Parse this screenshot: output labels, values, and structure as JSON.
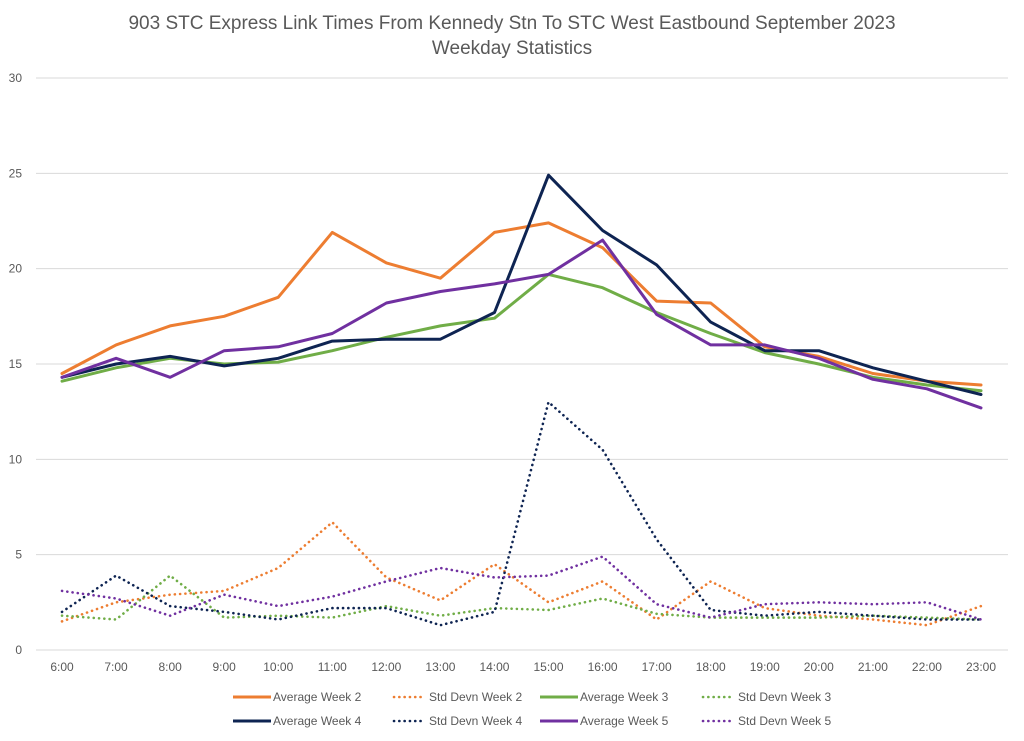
{
  "chart_data": {
    "type": "line",
    "title": "903 STC Express Link Times From Kennedy Stn To STC West Eastbound September 2023",
    "subtitle": "Weekday Statistics",
    "xlabel": "",
    "ylabel": "",
    "ylim": [
      0,
      30
    ],
    "yticks": [
      "0",
      "5",
      "10",
      "15",
      "20",
      "25",
      "30"
    ],
    "grid": true,
    "legend_position": "bottom",
    "categories": [
      "6:00",
      "7:00",
      "8:00",
      "9:00",
      "10:00",
      "11:00",
      "12:00",
      "13:00",
      "14:00",
      "15:00",
      "16:00",
      "17:00",
      "18:00",
      "19:00",
      "20:00",
      "21:00",
      "22:00",
      "23:00"
    ],
    "series": [
      {
        "name": "Average Week 2",
        "color": "#ED7D31",
        "style": "solid",
        "values": [
          14.5,
          16.0,
          17.0,
          17.5,
          18.5,
          21.9,
          20.3,
          19.5,
          21.9,
          22.4,
          21.1,
          18.3,
          18.2,
          15.9,
          15.4,
          14.5,
          14.1,
          13.9
        ]
      },
      {
        "name": "Std Devn Week 2",
        "color": "#ED7D31",
        "style": "dotted",
        "values": [
          1.5,
          2.5,
          2.9,
          3.1,
          4.3,
          6.7,
          3.8,
          2.6,
          4.5,
          2.5,
          3.6,
          1.6,
          3.6,
          2.2,
          1.8,
          1.6,
          1.3,
          2.3
        ]
      },
      {
        "name": "Average Week 3",
        "color": "#70AD47",
        "style": "solid",
        "values": [
          14.1,
          14.8,
          15.3,
          15.0,
          15.1,
          15.7,
          16.4,
          17.0,
          17.4,
          19.7,
          19.0,
          17.7,
          16.6,
          15.6,
          15.0,
          14.3,
          13.9,
          13.6
        ]
      },
      {
        "name": "Std Devn Week 3",
        "color": "#70AD47",
        "style": "dotted",
        "values": [
          1.8,
          1.6,
          3.9,
          1.7,
          1.8,
          1.7,
          2.3,
          1.8,
          2.2,
          2.1,
          2.7,
          1.9,
          1.7,
          1.7,
          1.7,
          1.8,
          1.7,
          1.6
        ]
      },
      {
        "name": "Average Week 4",
        "color": "#0E2452",
        "style": "solid",
        "values": [
          14.3,
          15.0,
          15.4,
          14.9,
          15.3,
          16.2,
          16.3,
          16.3,
          17.7,
          24.9,
          22.0,
          20.2,
          17.2,
          15.7,
          15.7,
          14.8,
          14.1,
          13.4
        ]
      },
      {
        "name": "Std Devn Week 4",
        "color": "#0E2452",
        "style": "dotted",
        "values": [
          2.0,
          3.9,
          2.3,
          2.0,
          1.6,
          2.2,
          2.2,
          1.3,
          2.0,
          13.0,
          10.5,
          5.8,
          2.1,
          1.8,
          2.0,
          1.8,
          1.6,
          1.6
        ]
      },
      {
        "name": "Average Week 5",
        "color": "#7030A0",
        "style": "solid",
        "values": [
          14.3,
          15.3,
          14.3,
          15.7,
          15.9,
          16.6,
          18.2,
          18.8,
          19.2,
          19.7,
          21.5,
          17.6,
          16.0,
          16.0,
          15.3,
          14.2,
          13.7,
          12.7
        ]
      },
      {
        "name": "Std Devn Week 5",
        "color": "#7030A0",
        "style": "dotted",
        "values": [
          3.1,
          2.7,
          1.8,
          2.9,
          2.3,
          2.8,
          3.6,
          4.3,
          3.8,
          3.9,
          4.9,
          2.4,
          1.7,
          2.4,
          2.5,
          2.4,
          2.5,
          1.6
        ]
      }
    ]
  }
}
